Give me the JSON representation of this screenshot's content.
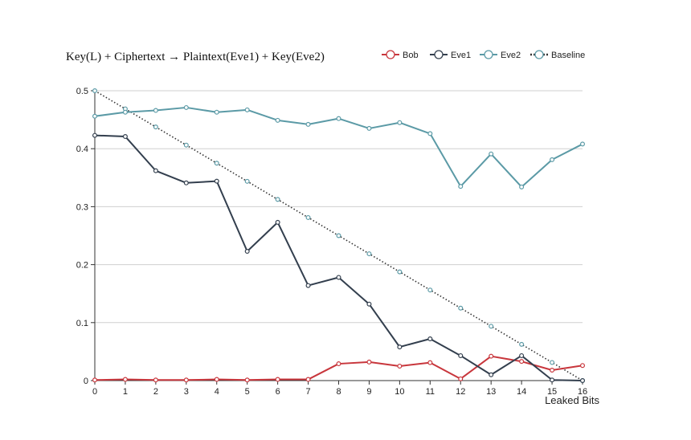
{
  "chart_data": {
    "type": "line",
    "title": "Key(L) + Ciphertext → Plaintext(Eve1) + Key(Eve2)",
    "xlabel": "Leaked Bits",
    "ylabel": "",
    "x": [
      0,
      1,
      2,
      3,
      4,
      5,
      6,
      7,
      8,
      9,
      10,
      11,
      12,
      13,
      14,
      15,
      16
    ],
    "x_ticks": [
      "0",
      "1",
      "2",
      "3",
      "4",
      "5",
      "6",
      "7",
      "8",
      "9",
      "10",
      "11",
      "12",
      "13",
      "14",
      "15",
      "16"
    ],
    "xlim": [
      0,
      16
    ],
    "ylim": [
      0,
      0.5
    ],
    "y_ticks": [
      0,
      0.1,
      0.2,
      0.3,
      0.4,
      0.5
    ],
    "y_tick_labels": [
      "0",
      "0.1",
      "0.2",
      "0.3",
      "0.4",
      "0.5"
    ],
    "grid": "horizontal",
    "legend_position": "top-right",
    "series": [
      {
        "name": "Bob",
        "color": "#c8363c",
        "style": "solid",
        "values": [
          0.001,
          0.002,
          0.001,
          0.001,
          0.002,
          0.001,
          0.002,
          0.002,
          0.029,
          0.032,
          0.025,
          0.031,
          0.003,
          0.042,
          0.033,
          0.018,
          0.026
        ]
      },
      {
        "name": "Eve1",
        "color": "#333f4e",
        "style": "solid",
        "values": [
          0.423,
          0.421,
          0.362,
          0.341,
          0.344,
          0.223,
          0.273,
          0.164,
          0.178,
          0.132,
          0.058,
          0.072,
          0.043,
          0.01,
          0.043,
          0.001,
          0.0
        ]
      },
      {
        "name": "Eve2",
        "color": "#5b9aa6",
        "style": "solid",
        "values": [
          0.456,
          0.463,
          0.466,
          0.471,
          0.463,
          0.467,
          0.449,
          0.442,
          0.452,
          0.435,
          0.445,
          0.426,
          0.335,
          0.391,
          0.334,
          0.381,
          0.408
        ]
      },
      {
        "name": "Baseline",
        "color": "#333333",
        "style": "dotted",
        "marker_color": "#5b9aa6",
        "values": [
          0.5,
          0.46875,
          0.4375,
          0.40625,
          0.375,
          0.34375,
          0.3125,
          0.28125,
          0.25,
          0.21875,
          0.1875,
          0.15625,
          0.125,
          0.09375,
          0.0625,
          0.03125,
          0.0
        ]
      }
    ]
  }
}
